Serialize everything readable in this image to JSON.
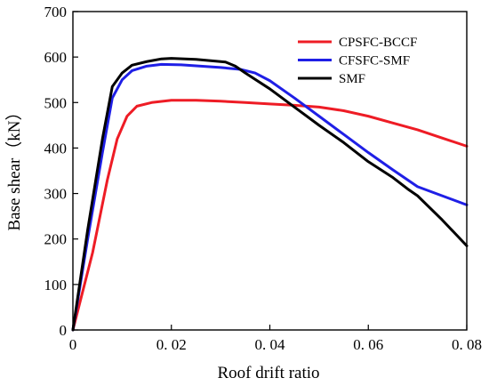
{
  "chart_data": {
    "type": "line",
    "title": "",
    "xlabel": "Roof drift ratio",
    "ylabel": "Base shear（kN）",
    "xlim": [
      0,
      0.08
    ],
    "ylim": [
      0,
      700
    ],
    "x_ticks": [
      0,
      0.02,
      0.04,
      0.06,
      0.08
    ],
    "x_tick_labels": [
      "0",
      "0. 02",
      "0. 04",
      "0. 06",
      "0. 08"
    ],
    "y_ticks": [
      0,
      100,
      200,
      300,
      400,
      500,
      600,
      700
    ],
    "y_tick_labels": [
      "0",
      "100",
      "200",
      "300",
      "400",
      "500",
      "600",
      "700"
    ],
    "grid": false,
    "legend_position": "top-right",
    "series": [
      {
        "name": "CPSFC-BCCF",
        "color": "#ee1c25",
        "points": [
          [
            0,
            0
          ],
          [
            0.004,
            170
          ],
          [
            0.007,
            330
          ],
          [
            0.009,
            420
          ],
          [
            0.011,
            470
          ],
          [
            0.013,
            492
          ],
          [
            0.016,
            500
          ],
          [
            0.02,
            505
          ],
          [
            0.025,
            505
          ],
          [
            0.03,
            503
          ],
          [
            0.035,
            500
          ],
          [
            0.04,
            497
          ],
          [
            0.045,
            494
          ],
          [
            0.05,
            490
          ],
          [
            0.055,
            482
          ],
          [
            0.06,
            470
          ],
          [
            0.065,
            455
          ],
          [
            0.07,
            440
          ],
          [
            0.075,
            422
          ],
          [
            0.08,
            404
          ]
        ]
      },
      {
        "name": "CFSFC-SMF",
        "color": "#1f1fe6",
        "points": [
          [
            0,
            0
          ],
          [
            0.003,
            200
          ],
          [
            0.006,
            390
          ],
          [
            0.008,
            510
          ],
          [
            0.01,
            550
          ],
          [
            0.012,
            570
          ],
          [
            0.015,
            580
          ],
          [
            0.018,
            584
          ],
          [
            0.022,
            583
          ],
          [
            0.026,
            580
          ],
          [
            0.03,
            577
          ],
          [
            0.034,
            573
          ],
          [
            0.037,
            565
          ],
          [
            0.04,
            548
          ],
          [
            0.045,
            510
          ],
          [
            0.05,
            470
          ],
          [
            0.055,
            430
          ],
          [
            0.06,
            390
          ],
          [
            0.065,
            352
          ],
          [
            0.07,
            315
          ],
          [
            0.075,
            295
          ],
          [
            0.08,
            275
          ]
        ]
      },
      {
        "name": "SMF",
        "color": "#000000",
        "points": [
          [
            0,
            0
          ],
          [
            0.003,
            220
          ],
          [
            0.006,
            420
          ],
          [
            0.008,
            535
          ],
          [
            0.01,
            565
          ],
          [
            0.012,
            582
          ],
          [
            0.015,
            590
          ],
          [
            0.018,
            596
          ],
          [
            0.02,
            597
          ],
          [
            0.025,
            595
          ],
          [
            0.028,
            592
          ],
          [
            0.031,
            589
          ],
          [
            0.033,
            580
          ],
          [
            0.035,
            565
          ],
          [
            0.04,
            530
          ],
          [
            0.045,
            490
          ],
          [
            0.05,
            450
          ],
          [
            0.055,
            412
          ],
          [
            0.06,
            370
          ],
          [
            0.065,
            335
          ],
          [
            0.068,
            310
          ],
          [
            0.07,
            295
          ],
          [
            0.075,
            242
          ],
          [
            0.08,
            185
          ]
        ]
      }
    ]
  }
}
